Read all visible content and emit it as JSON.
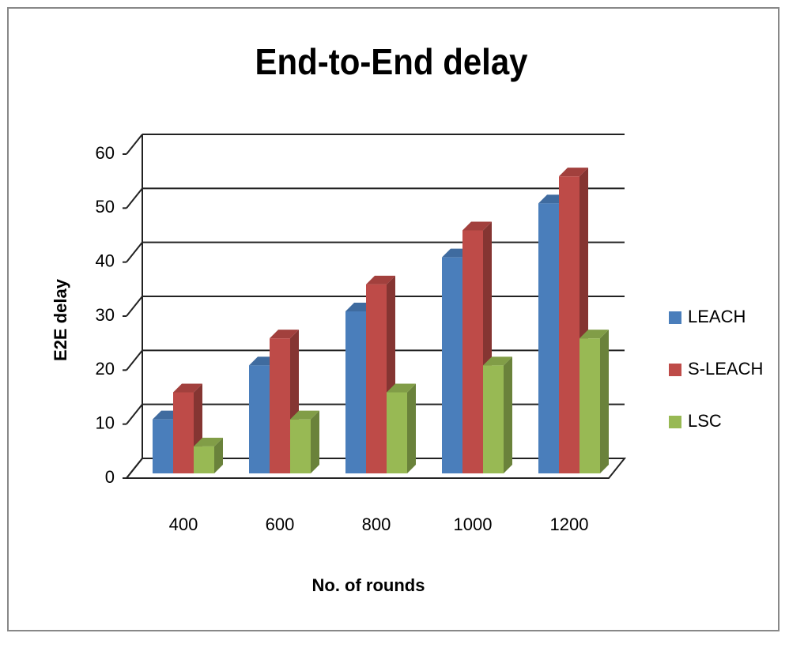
{
  "chart_data": {
    "type": "bar3d",
    "title": "End-to-End delay",
    "categories": [
      "400",
      "600",
      "800",
      "1000",
      "1200"
    ],
    "series": [
      {
        "name": "LEACH",
        "color": "#4a7ebb",
        "values": [
          10,
          20,
          30,
          40,
          50
        ]
      },
      {
        "name": "S-LEACH",
        "color": "#be4b48",
        "values": [
          15,
          25,
          35,
          45,
          55
        ]
      },
      {
        "name": "LSC",
        "color": "#98b954",
        "values": [
          5,
          10,
          15,
          20,
          25
        ]
      }
    ],
    "ylim": [
      0,
      60
    ],
    "yticks": [
      0,
      10,
      20,
      30,
      40,
      50,
      60
    ],
    "y_label": "E2E delay",
    "x_label": "No. of rounds",
    "grid": true,
    "legend": "right"
  }
}
